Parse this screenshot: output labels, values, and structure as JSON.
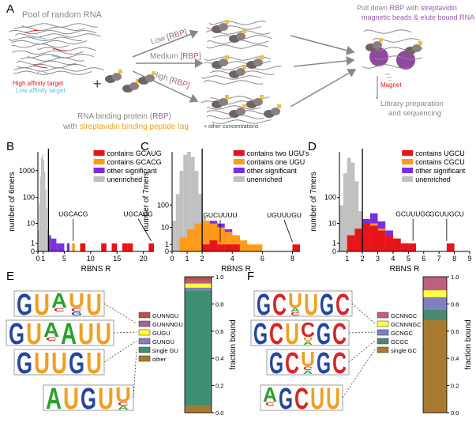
{
  "panel_a": {
    "label": "A",
    "pool_title": "Pool of random RNA",
    "high_affinity": "High affinity target",
    "low_affinity": "Low affinity target",
    "plus": "+",
    "rbp_line1": [
      "RNA binding protein (",
      "RBP",
      ")"
    ],
    "rbp_line2": [
      "with ",
      "streptavidin binding peptide tag"
    ],
    "conditions": [
      [
        "Low ",
        "[RBP]"
      ],
      [
        "Medium ",
        "[RBP]"
      ],
      [
        "High ",
        "[RBP]"
      ]
    ],
    "other_conc": "+ other concentrations",
    "pulldown_line1": [
      "Pull down ",
      "RBP",
      " with ",
      "streptavidin"
    ],
    "pulldown_line2": "magnetic beads & elute bound RNA",
    "magnet": "Magnet",
    "library_line1": "Library preparation",
    "library_line2": "and sequencing"
  },
  "logo_colors": {
    "A": "#2ca02c",
    "C": "#d62728",
    "G": "#2446a0",
    "U": "#f0a020"
  },
  "chart_data": [
    {
      "type": "histogram",
      "label": "B",
      "ylabel": "number of 6mers",
      "xlabel": "RBNS R",
      "yscale": "symlog",
      "xlim": [
        0,
        22
      ],
      "ylim": [
        0,
        5000
      ],
      "xticks": [
        0,
        1,
        5,
        10,
        15,
        20
      ],
      "yticks": [
        0,
        1,
        10,
        100,
        1000
      ],
      "threshold": 2,
      "series": [
        {
          "name": "contains GCAUG",
          "color": "#e8141c",
          "bins": [
            8,
            9,
            10,
            11,
            12,
            13,
            14,
            15,
            16,
            17,
            18,
            19,
            20,
            21,
            22
          ],
          "values": [
            1,
            0,
            0,
            0,
            1,
            0,
            1,
            0,
            1,
            1,
            0,
            0,
            0,
            1
          ]
        },
        {
          "name": "contains GCACG",
          "color": "#ff9a1a",
          "bins": [
            6.5,
            7
          ],
          "values": [
            1
          ]
        },
        {
          "name": "other significant",
          "color": "#7a2ee0",
          "bins": [
            2,
            2.5,
            3,
            3.5,
            4,
            4.5,
            5,
            5.5,
            6
          ],
          "values": [
            3,
            2,
            2,
            1,
            1,
            1,
            0,
            1
          ]
        },
        {
          "name": "unenriched",
          "color": "#c0c0c0",
          "bins": [
            0,
            0.2,
            0.4,
            0.6,
            0.8,
            1,
            1.2,
            1.4,
            1.6,
            1.8,
            2
          ],
          "values": [
            5,
            60,
            600,
            3000,
            4000,
            2500,
            900,
            200,
            40,
            5
          ]
        }
      ],
      "annotations": [
        {
          "text": "UGCACG",
          "x": 6.7
        },
        {
          "text": "UGCAUG",
          "x": 21.5
        }
      ]
    },
    {
      "type": "histogram",
      "label": "C",
      "ylabel": "number of 7mers",
      "xlabel": "RBNS R",
      "yscale": "symlog",
      "xlim": [
        0,
        8.5
      ],
      "ylim": [
        0,
        20000
      ],
      "xticks": [
        0,
        1,
        2,
        4,
        6,
        8
      ],
      "yticks": [
        0,
        1,
        10,
        100
      ],
      "threshold": 2,
      "series": [
        {
          "name": "contains two UGU's",
          "color": "#e8141c",
          "bins": [
            2,
            2.5,
            3,
            3.5,
            4,
            4.5,
            5,
            5.5,
            6,
            6.5,
            7,
            7.5,
            8,
            8.5
          ],
          "values": [
            1,
            2,
            1,
            1,
            1,
            0,
            0,
            0,
            0,
            0,
            0,
            0,
            1
          ]
        },
        {
          "name": "contains one UGU",
          "color": "#ff9a1a",
          "bins": [
            0.5,
            1,
            1.5,
            2,
            2.5,
            3,
            3.5,
            4,
            4.5,
            5,
            5.5,
            6
          ],
          "values": [
            3,
            8,
            15,
            20,
            15,
            10,
            6,
            4,
            2,
            1,
            1
          ]
        },
        {
          "name": "other significant",
          "color": "#7a2ee0",
          "bins": [
            2,
            2.5,
            3,
            3.5,
            4,
            4.5,
            5
          ],
          "values": [
            10,
            20,
            15,
            8,
            3,
            1
          ]
        },
        {
          "name": "unenriched",
          "color": "#c0c0c0",
          "bins": [
            0,
            0.25,
            0.5,
            0.75,
            1,
            1.25,
            1.5,
            1.75,
            2,
            2.25,
            2.5
          ],
          "values": [
            20,
            300,
            3000,
            15000,
            20000,
            12000,
            3000,
            300,
            30,
            3
          ]
        }
      ],
      "annotations": [
        {
          "text": "GUCUUUU",
          "x": 3.2
        },
        {
          "text": "UGUUUGU",
          "x": 8
        }
      ]
    },
    {
      "type": "histogram",
      "label": "D",
      "ylabel": "number of 7mers",
      "xlabel": "RBNS R",
      "yscale": "symlog",
      "xlim": [
        0.5,
        9
      ],
      "ylim": [
        0,
        5000
      ],
      "xticks": [
        1,
        2,
        3,
        4,
        5,
        6,
        7,
        8,
        9
      ],
      "yticks": [
        0,
        1,
        10,
        100
      ],
      "threshold": 2,
      "series": [
        {
          "name": "contains UGCU",
          "color": "#e8141c",
          "bins": [
            1,
            1.5,
            2,
            2.5,
            3,
            3.5,
            4,
            4.5,
            5,
            5.5,
            6,
            6.5,
            7,
            7.5,
            8
          ],
          "values": [
            3,
            6,
            10,
            8,
            5,
            3,
            2,
            1,
            1,
            0,
            0,
            0,
            0,
            1
          ]
        },
        {
          "name": "contains CGCU",
          "color": "#ff9a1a",
          "bins": [
            1,
            1.5,
            2,
            2.5,
            3,
            3.5,
            4,
            4.5,
            5
          ],
          "values": [
            2,
            5,
            8,
            10,
            6,
            3,
            2,
            1
          ]
        },
        {
          "name": "other significant",
          "color": "#7a2ee0",
          "bins": [
            2,
            2.5,
            3,
            3.5,
            4,
            4.5,
            5
          ],
          "values": [
            15,
            25,
            12,
            5,
            2,
            1
          ]
        },
        {
          "name": "unenriched",
          "color": "#c0c0c0",
          "bins": [
            0.5,
            0.75,
            1,
            1.25,
            1.5,
            1.75,
            2
          ],
          "values": [
            50,
            800,
            3000,
            2000,
            400,
            30
          ]
        }
      ],
      "annotations": [
        {
          "text": "GCUUUGC",
          "x": 5.3
        },
        {
          "text": "GCUUGCU",
          "x": 7.5
        }
      ]
    },
    {
      "type": "stacked_bar",
      "label": "E",
      "ylabel": "fraction bound",
      "ylim": [
        0,
        1
      ],
      "yticks": [
        {
          "value": 0,
          "label": "0.0"
        },
        0.2,
        0.4,
        0.6,
        0.8,
        {
          "value": 1,
          "label": "1.0"
        }
      ],
      "series": [
        {
          "name": "GUNNGU",
          "color": "#c0504d",
          "values": [
            0.03
          ]
        },
        {
          "name": "GUNNNGU",
          "color": "#b05c8c",
          "values": [
            0.02
          ]
        },
        {
          "name": "GUGU",
          "color": "#ffff33",
          "values": [
            0.03
          ]
        },
        {
          "name": "GUNGU",
          "color": "#8080c0",
          "values": [
            0.02
          ]
        },
        {
          "name": "single GU",
          "color": "#3f8f72",
          "values": [
            0.85
          ]
        },
        {
          "name": "other",
          "color": "#a87a30",
          "values": [
            0.05
          ]
        }
      ],
      "logos": [
        [
          [
            "G"
          ],
          [
            "U"
          ],
          [
            "A",
            "C"
          ],
          [
            "U",
            "C",
            "G"
          ],
          [
            "U"
          ]
        ],
        [
          [
            "G"
          ],
          [
            "U"
          ],
          [
            "A",
            "C"
          ],
          [
            "A"
          ],
          [
            "U"
          ],
          [
            "U"
          ]
        ],
        [
          [
            "G"
          ],
          [
            "U"
          ],
          [
            "U"
          ],
          [
            "G"
          ],
          [
            "U"
          ]
        ],
        [
          [
            "A"
          ],
          [
            "U"
          ],
          [
            "G"
          ],
          [
            "U"
          ],
          [
            "U",
            "C",
            "A"
          ]
        ]
      ]
    },
    {
      "type": "stacked_bar",
      "label": "F",
      "ylabel": "fraction bound",
      "ylim": [
        0,
        1
      ],
      "yticks": [
        {
          "value": 0,
          "label": "0.0"
        },
        0.2,
        0.4,
        0.6,
        0.8,
        {
          "value": 1,
          "label": "1.0"
        }
      ],
      "series": [
        {
          "name": "GCNNGC",
          "color": "#c06080",
          "values": [
            0.1
          ]
        },
        {
          "name": "GCNNNGC",
          "color": "#ffff40",
          "values": [
            0.05
          ]
        },
        {
          "name": "GCNGC",
          "color": "#8080c0",
          "values": [
            0.09
          ]
        },
        {
          "name": "GCGC",
          "color": "#4a8a70",
          "values": [
            0.08
          ]
        },
        {
          "name": "single GC",
          "color": "#a87a30",
          "values": [
            0.68
          ]
        }
      ],
      "logos": [
        [
          [
            "G"
          ],
          [
            "C"
          ],
          [
            "U",
            "A",
            "C"
          ],
          [
            "U"
          ],
          [
            "G"
          ],
          [
            "C"
          ]
        ],
        [
          [
            "G"
          ],
          [
            "C"
          ],
          [
            "U"
          ],
          [
            "C",
            "U",
            "A"
          ],
          [
            "G"
          ],
          [
            "C"
          ]
        ],
        [
          [
            "G"
          ],
          [
            "C"
          ],
          [
            "U",
            "C",
            "A"
          ],
          [
            "G"
          ],
          [
            "C"
          ]
        ],
        [
          [
            "A",
            "C"
          ],
          [
            "G"
          ],
          [
            "C"
          ],
          [
            "U"
          ],
          [
            "U"
          ]
        ]
      ]
    }
  ]
}
